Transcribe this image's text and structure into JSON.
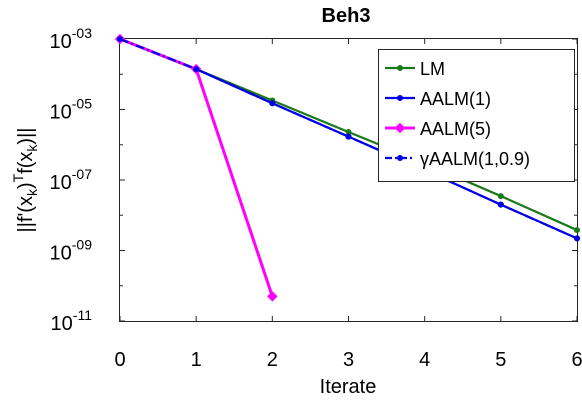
{
  "chart_data": {
    "type": "line",
    "title": "Beh3",
    "xlabel": "Iterate",
    "ylabel": "||f'(x_k)^T f(x_k)||",
    "ylabel_parts": {
      "open": "||f'(x",
      "sub1": "k",
      "close1": ")",
      "sup": "T",
      "mid": "f(x",
      "sub2": "k",
      "close2": ")||"
    },
    "yscale": "log",
    "xlim": [
      0,
      6
    ],
    "ylim_exp": [
      -11,
      -3
    ],
    "x_ticks": [
      "0",
      "1",
      "2",
      "3",
      "4",
      "5",
      "6"
    ],
    "y_ticks": [
      {
        "exp": -3,
        "base": "10",
        "sup": "-03"
      },
      {
        "exp": -5,
        "base": "10",
        "sup": "-05"
      },
      {
        "exp": -7,
        "base": "10",
        "sup": "-07"
      },
      {
        "exp": -9,
        "base": "10",
        "sup": "-09"
      },
      {
        "exp": -11,
        "base": "10",
        "sup": "-11"
      }
    ],
    "grid": false,
    "legend_position": "top-right",
    "series": [
      {
        "name": "LM",
        "color": "#1a7a1a",
        "dash": "solid",
        "marker": "dot",
        "x": [
          0,
          1,
          2,
          3,
          4,
          5,
          6
        ],
        "y": [
          0.001,
          0.00014,
          1.8e-05,
          2.3e-06,
          3e-07,
          3.5e-08,
          3.8e-09
        ]
      },
      {
        "name": "AALM(1)",
        "color": "#0000e6",
        "dash": "solid",
        "marker": "dot",
        "x": [
          0,
          1,
          2,
          3,
          4,
          5,
          6
        ],
        "y": [
          0.001,
          0.00014,
          1.5e-05,
          1.7e-06,
          1.9e-07,
          2e-08,
          2.2e-09
        ]
      },
      {
        "name": "AALM(5)",
        "color": "#ff00ff",
        "dash": "solid",
        "marker": "diamond",
        "x": [
          0,
          1,
          2
        ],
        "y": [
          0.001,
          0.00014,
          5e-11
        ]
      },
      {
        "name": "γAALM(1,0.9)",
        "color": "#0000e6",
        "dash": "dashdot",
        "marker": "dot",
        "x": [
          0,
          1,
          2,
          3,
          4,
          5,
          6
        ],
        "y": [
          0.001,
          0.00014,
          1.5e-05,
          1.7e-06,
          1.9e-07,
          2e-08,
          2.2e-09
        ]
      }
    ]
  }
}
